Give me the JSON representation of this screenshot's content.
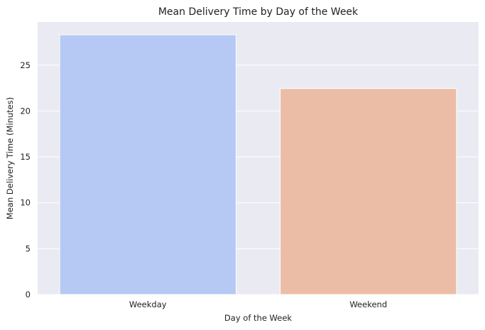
{
  "chart_data": {
    "type": "bar",
    "title": "Mean Delivery Time by Day of the Week",
    "xlabel": "Day of the Week",
    "ylabel": "Mean Delivery Time (Minutes)",
    "categories": [
      "Weekday",
      "Weekend"
    ],
    "values": [
      28.3,
      22.45
    ],
    "bar_colors": [
      "#b5c9f4",
      "#ecbda6"
    ],
    "ylim": [
      0,
      29.7
    ],
    "yticks": [
      0,
      5,
      10,
      15,
      20,
      25
    ],
    "grid": true,
    "plot_background": "#eaeaf2",
    "grid_color": "#ffffff"
  }
}
